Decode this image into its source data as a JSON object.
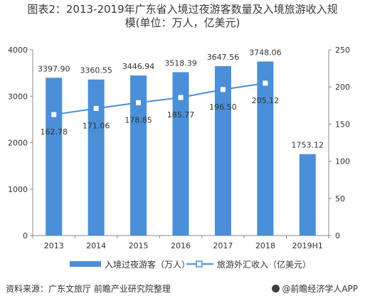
{
  "title_line1": "图表2：2013-2019年广东省入境过夜游客数量及入境旅游收入规",
  "title_line2": "模(单位：万人，亿美元)",
  "source_text": "资料来源：广东文旅厅 前瞻产业研究院整理",
  "brand_text": "@前瞻经济学人APP",
  "colors": {
    "bar": "#4a8fd8",
    "line": "#4a8fd8",
    "text": "#333333",
    "axis": "#888888"
  },
  "chart_data": {
    "type": "bar",
    "title": "图表2：2013-2019年广东省入境过夜游客数量及入境旅游收入规模(单位：万人，亿美元)",
    "categories": [
      "2013",
      "2014",
      "2015",
      "2016",
      "2017",
      "2018",
      "2019H1"
    ],
    "series": [
      {
        "name": "入境过夜游客（万人）",
        "type": "bar",
        "axis": "left",
        "values": [
          3397.9,
          3360.55,
          3446.94,
          3518.39,
          3647.56,
          3748.06,
          1753.12
        ],
        "labels": [
          "3397.90",
          "3360.55",
          "3446.94",
          "3518.39",
          "3647.56",
          "3748.06",
          "1753.12"
        ]
      },
      {
        "name": "旅游外汇收入（亿美元）",
        "type": "line",
        "axis": "right",
        "values": [
          162.78,
          171.06,
          178.85,
          185.77,
          196.5,
          205.12,
          null
        ],
        "labels": [
          "162.78",
          "171.06",
          "178.85",
          "185.77",
          "196.50",
          "205.12",
          ""
        ]
      }
    ],
    "y_left": {
      "min": 0,
      "max": 4000,
      "ticks": [
        "0",
        "1000",
        "2000",
        "3000",
        "4000"
      ]
    },
    "y_right": {
      "min": 0,
      "max": 250,
      "ticks": [
        "0",
        "50",
        "100",
        "150",
        "200",
        "250"
      ]
    },
    "grid": false,
    "legend": "bottom"
  }
}
